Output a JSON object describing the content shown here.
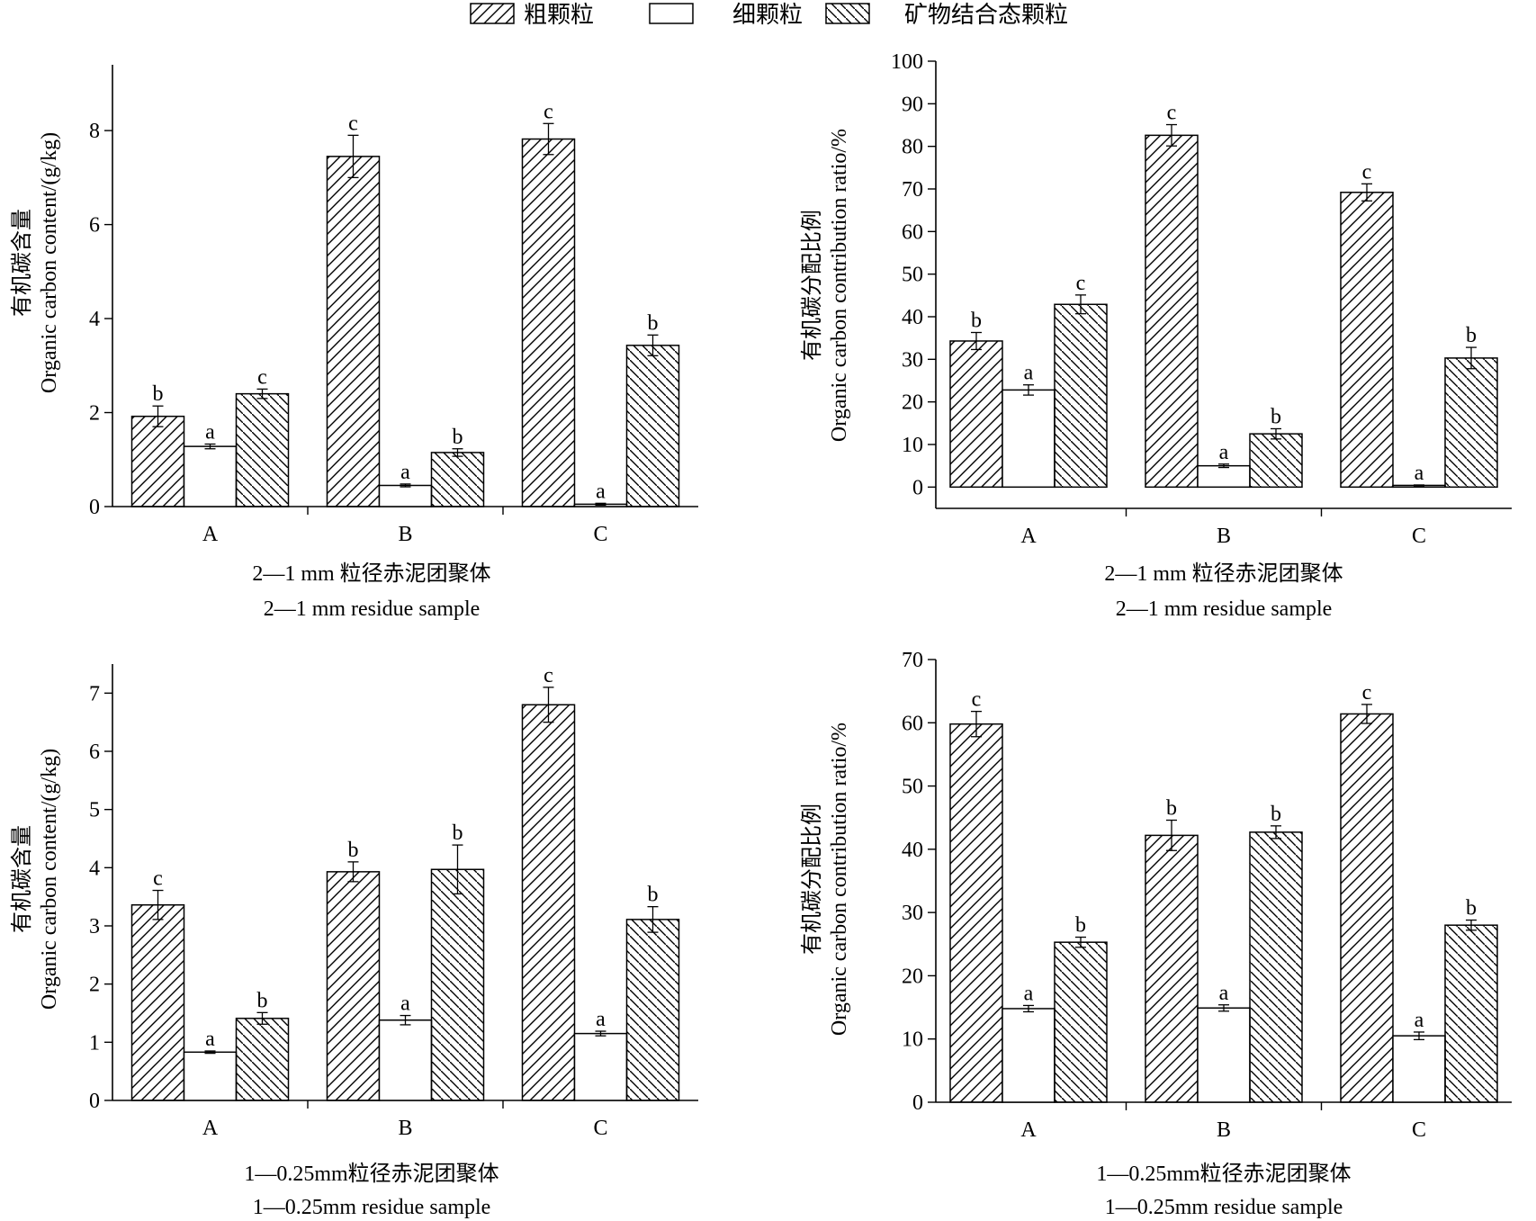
{
  "legend": [
    {
      "label": "粗颗粒",
      "pattern": "hatch-right"
    },
    {
      "label": "细颗粒",
      "pattern": "none"
    },
    {
      "label": "矿物结合态颗粒",
      "pattern": "hatch-left"
    }
  ],
  "chart_data": [
    {
      "type": "bar",
      "categories": [
        "A",
        "B",
        "C"
      ],
      "ylabel_cn": "有机碳含量",
      "ylabel_en": "Organic carbon content/(g/kg)",
      "xlabel_cn": "2—1 mm 粒径赤泥团聚体",
      "xlabel_en": "2—1 mm residue sample",
      "ylim": [
        0,
        9.4
      ],
      "yticks": [
        0,
        2,
        4,
        6,
        8
      ],
      "series": [
        {
          "name": "粗颗粒",
          "values": [
            1.92,
            7.45,
            7.82
          ],
          "errors": [
            0.22,
            0.45,
            0.33
          ],
          "sig": [
            "b",
            "c",
            "c"
          ]
        },
        {
          "name": "细颗粒",
          "values": [
            1.28,
            0.45,
            0.05
          ],
          "errors": [
            0.05,
            0.03,
            0.02
          ],
          "sig": [
            "a",
            "a",
            "a"
          ]
        },
        {
          "name": "矿物结合态颗粒",
          "values": [
            2.4,
            1.15,
            3.43
          ],
          "errors": [
            0.1,
            0.08,
            0.22
          ],
          "sig": [
            "c",
            "b",
            "b"
          ]
        }
      ]
    },
    {
      "type": "bar",
      "categories": [
        "A",
        "B",
        "C"
      ],
      "ylabel_cn": "有机碳分配比例",
      "ylabel_en": "Organic carbon contribution ratio/%",
      "xlabel_cn": "2—1 mm 粒径赤泥团聚体",
      "xlabel_en": "2—1 mm residue sample",
      "ylim": [
        -5,
        100
      ],
      "yticks": [
        0,
        10,
        20,
        30,
        40,
        50,
        60,
        70,
        80,
        90,
        100
      ],
      "series": [
        {
          "name": "粗颗粒",
          "values": [
            34.3,
            82.6,
            69.2
          ],
          "errors": [
            2.0,
            2.5,
            2.0
          ],
          "sig": [
            "b",
            "c",
            "c"
          ]
        },
        {
          "name": "细颗粒",
          "values": [
            22.8,
            5.0,
            0.4
          ],
          "errors": [
            1.2,
            0.4,
            0.1
          ],
          "sig": [
            "a",
            "a",
            "a"
          ]
        },
        {
          "name": "矿物结合态颗粒",
          "values": [
            42.9,
            12.5,
            30.3
          ],
          "errors": [
            2.2,
            1.2,
            2.5
          ],
          "sig": [
            "c",
            "b",
            "b"
          ]
        }
      ]
    },
    {
      "type": "bar",
      "categories": [
        "A",
        "B",
        "C"
      ],
      "ylabel_cn": "有机碳含量",
      "ylabel_en": "Organic carbon content/(g/kg)",
      "xlabel_cn": "1—0.25mm粒径赤泥团聚体",
      "xlabel_en": "1—0.25mm residue sample",
      "ylim": [
        0,
        7.5
      ],
      "yticks": [
        0,
        1,
        2,
        3,
        4,
        5,
        6,
        7
      ],
      "series": [
        {
          "name": "粗颗粒",
          "values": [
            3.36,
            3.93,
            6.8
          ],
          "errors": [
            0.25,
            0.17,
            0.3
          ],
          "sig": [
            "c",
            "b",
            "c"
          ]
        },
        {
          "name": "细颗粒",
          "values": [
            0.83,
            1.38,
            1.15
          ],
          "errors": [
            0.02,
            0.08,
            0.04
          ],
          "sig": [
            "a",
            "a",
            "a"
          ]
        },
        {
          "name": "矿物结合态颗粒",
          "values": [
            1.41,
            3.97,
            3.11
          ],
          "errors": [
            0.1,
            0.42,
            0.22
          ],
          "sig": [
            "b",
            "b",
            "b"
          ]
        }
      ]
    },
    {
      "type": "bar",
      "categories": [
        "A",
        "B",
        "C"
      ],
      "ylabel_cn": "有机碳分配比例",
      "ylabel_en": "Organic carbon contribution ratio/%",
      "xlabel_cn": "1—0.25mm粒径赤泥团聚体",
      "xlabel_en": "1—0.25mm residue sample",
      "ylim": [
        0,
        70
      ],
      "yticks": [
        0,
        10,
        20,
        30,
        40,
        50,
        60,
        70
      ],
      "series": [
        {
          "name": "粗颗粒",
          "values": [
            59.8,
            42.2,
            61.4
          ],
          "errors": [
            2.0,
            2.4,
            1.5
          ],
          "sig": [
            "c",
            "b",
            "c"
          ]
        },
        {
          "name": "细颗粒",
          "values": [
            14.8,
            14.9,
            10.5
          ],
          "errors": [
            0.5,
            0.5,
            0.6
          ],
          "sig": [
            "a",
            "a",
            "a"
          ]
        },
        {
          "name": "矿物结合态颗粒",
          "values": [
            25.3,
            42.7,
            28.0
          ],
          "errors": [
            0.8,
            1.0,
            0.8
          ],
          "sig": [
            "b",
            "b",
            "b"
          ]
        }
      ]
    }
  ]
}
